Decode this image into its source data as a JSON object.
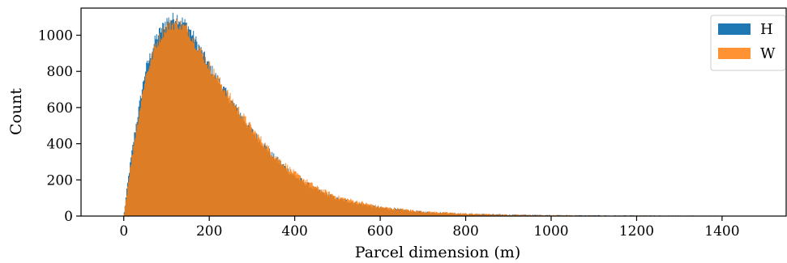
{
  "chart_data": {
    "type": "histogram",
    "xlabel": "Parcel dimension (m)",
    "ylabel": "Count",
    "xlim": [
      -100,
      1550
    ],
    "ylim": [
      0,
      1150
    ],
    "x_ticks": [
      0,
      200,
      400,
      600,
      800,
      1000,
      1200,
      1400
    ],
    "y_ticks": [
      0,
      200,
      400,
      600,
      800,
      1000
    ],
    "grid": false,
    "legend": {
      "position": "top-right",
      "entries": [
        "H",
        "W"
      ]
    },
    "series": [
      {
        "name": "H",
        "color": "#1f77b4",
        "profile": {
          "x": [
            0,
            10,
            25,
            50,
            75,
            100,
            125,
            150,
            175,
            200,
            250,
            300,
            350,
            400,
            450,
            500,
            600,
            700,
            800,
            900,
            1000,
            1200,
            1400,
            1500
          ],
          "count": [
            0,
            200,
            450,
            800,
            980,
            1080,
            1100,
            1050,
            940,
            830,
            640,
            470,
            330,
            220,
            145,
            95,
            45,
            22,
            12,
            7,
            4,
            1,
            0,
            0
          ]
        }
      },
      {
        "name": "W",
        "color": "#ff7f0e",
        "profile": {
          "x": [
            0,
            10,
            25,
            50,
            75,
            100,
            125,
            150,
            175,
            200,
            250,
            300,
            350,
            400,
            450,
            500,
            600,
            700,
            800,
            900,
            1000,
            1200,
            1400,
            1500
          ],
          "count": [
            0,
            180,
            420,
            760,
            950,
            1050,
            1070,
            1030,
            930,
            830,
            650,
            480,
            340,
            235,
            158,
            105,
            50,
            25,
            13,
            7,
            4,
            1,
            0,
            0
          ]
        }
      }
    ]
  }
}
